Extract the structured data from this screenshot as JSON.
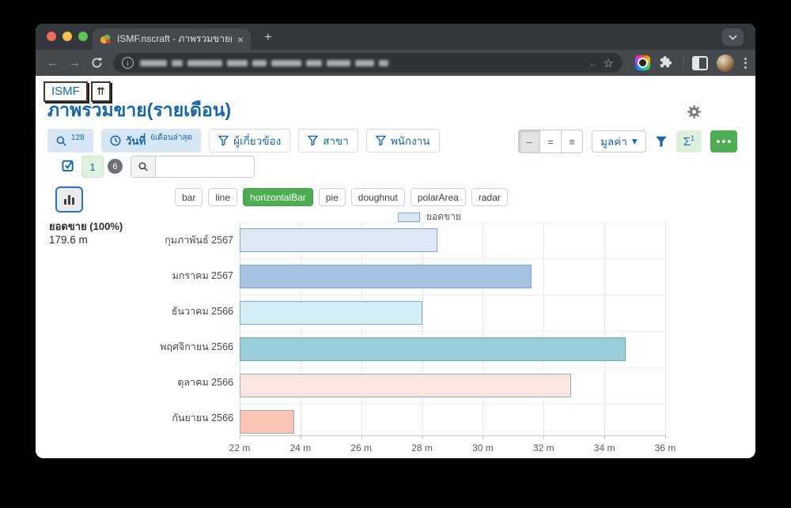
{
  "browser": {
    "tab": {
      "title": "ISMF.nscraft - ภาพรวมขาย(ราย",
      "close": "×"
    },
    "new_tab": "+",
    "nav": {
      "back": "←",
      "forward": "→"
    },
    "url": {
      "dots": "..",
      "star": "☆"
    }
  },
  "page": {
    "logo": "ISMF",
    "collapse_icon": "⇈",
    "title": "ภาพรวมขาย(รายเดือน)",
    "filters": {
      "search_count": "128",
      "date_label": "วันที่",
      "date_value": "6เดือนล่าสุด",
      "related": "ผู้เกี่ยวข้อง",
      "branch": "สาขา",
      "employee": "พนักงาน"
    },
    "view_toggle": [
      "–",
      "=",
      "≡"
    ],
    "value_dropdown": "มูลค่า",
    "dropdown_caret": "▾",
    "sigma": "Σ",
    "sigma_sup": "1",
    "selected_count": "1",
    "badge_count": "6",
    "search_placeholder": "",
    "series": {
      "name_pct": "ยอดขาย (100%)",
      "total": "179.6 m"
    },
    "chart_types": [
      "bar",
      "line",
      "horizontalBar",
      "pie",
      "doughnut",
      "polarArea",
      "radar"
    ],
    "chart_type_selected": "horizontalBar",
    "legend": "ยอดขาย"
  },
  "colors": {
    "accent_blue": "#1566af",
    "selected_green": "#4cae50",
    "light_blue_bg": "#d8e7f6",
    "light_green_bg": "#ddefdd"
  },
  "chart_data": {
    "type": "bar",
    "orientation": "horizontal",
    "legend_label": "ยอดขาย",
    "legend_position": "top",
    "grid": true,
    "categories": [
      "กุมภาพันธ์ 2567",
      "มกราคม 2567",
      "ธันวาคม 2566",
      "พฤศจิกายน 2566",
      "ตุลาคม 2566",
      "กันยายน 2566"
    ],
    "values": [
      28.5,
      31.6,
      28.0,
      34.7,
      32.9,
      23.8
    ],
    "unit": "m",
    "total_label": "179.6 m",
    "xlim": [
      22,
      36
    ],
    "tick_step": 2,
    "tick_labels": [
      "22 m",
      "24 m",
      "26 m",
      "28 m",
      "30 m",
      "32 m",
      "34 m",
      "36 m"
    ],
    "bar_colors": [
      {
        "fill": "#dde9f6",
        "border": "#7fa6cb"
      },
      {
        "fill": "#a6c3e3",
        "border": "#7fa6cb"
      },
      {
        "fill": "#d5eef5",
        "border": "#74afc0"
      },
      {
        "fill": "#99cdd7",
        "border": "#6aa9b6"
      },
      {
        "fill": "#fbe6df",
        "border": "#8db0cb"
      },
      {
        "fill": "#f9c3b1",
        "border": "#8db0cb"
      }
    ],
    "legend_swatch": {
      "fill": "#d9e8f7",
      "border": "#7fa6cb"
    }
  }
}
